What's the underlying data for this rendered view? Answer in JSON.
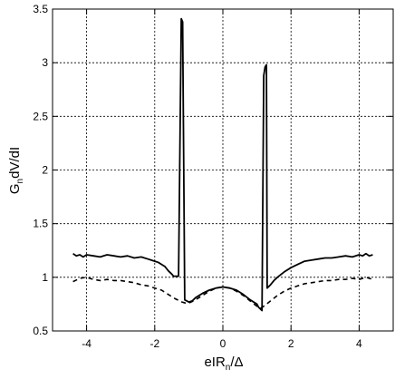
{
  "chart_data": {
    "type": "line",
    "xlabel": {
      "base": "eIR",
      "sub": "n",
      "tail": "/Δ"
    },
    "ylabel": {
      "base": "G",
      "sub": "n",
      "tail": "dV/dI"
    },
    "xlim": [
      -5,
      5
    ],
    "ylim": [
      0.5,
      3.5
    ],
    "xticks": [
      -4,
      -2,
      0,
      2,
      4
    ],
    "yticks": [
      0.5,
      1,
      1.5,
      2,
      2.5,
      3,
      3.5
    ],
    "xtick_labels": [
      "-4",
      "-2",
      "0",
      "2",
      "4"
    ],
    "ytick_labels": [
      "0.5",
      "1",
      "1.5",
      "2",
      "2.5",
      "3",
      "3.5"
    ],
    "grid": true,
    "series": [
      {
        "style": "solid",
        "x": [
          -4.4,
          -4.3,
          -4.2,
          -4.1,
          -4.0,
          -3.8,
          -3.6,
          -3.4,
          -3.2,
          -3.0,
          -2.8,
          -2.6,
          -2.4,
          -2.2,
          -2.0,
          -1.9,
          -1.8,
          -1.7,
          -1.6,
          -1.5,
          -1.45,
          -1.35,
          -1.3,
          -1.22,
          -1.18,
          -1.12,
          -1.0,
          -0.9,
          -0.8,
          -0.6,
          -0.4,
          -0.2,
          0.0,
          0.2,
          0.4,
          0.6,
          0.8,
          1.0,
          1.05,
          1.15,
          1.2,
          1.24,
          1.28,
          1.3,
          1.4,
          1.5,
          1.6,
          1.8,
          2.0,
          2.2,
          2.4,
          2.6,
          2.8,
          3.0,
          3.2,
          3.4,
          3.6,
          3.8,
          4.0,
          4.1,
          4.2,
          4.3,
          4.4
        ],
        "y": [
          1.22,
          1.2,
          1.21,
          1.19,
          1.21,
          1.2,
          1.19,
          1.21,
          1.2,
          1.19,
          1.2,
          1.18,
          1.19,
          1.17,
          1.15,
          1.14,
          1.12,
          1.1,
          1.06,
          1.03,
          1.01,
          1.01,
          1.01,
          3.41,
          3.38,
          0.79,
          0.77,
          0.78,
          0.81,
          0.85,
          0.88,
          0.9,
          0.91,
          0.9,
          0.88,
          0.84,
          0.79,
          0.75,
          0.72,
          0.69,
          2.88,
          2.96,
          2.98,
          0.9,
          0.93,
          0.97,
          1.0,
          1.05,
          1.09,
          1.12,
          1.15,
          1.16,
          1.17,
          1.18,
          1.18,
          1.19,
          1.2,
          1.19,
          1.21,
          1.2,
          1.22,
          1.2,
          1.21
        ]
      },
      {
        "style": "dashed",
        "x": [
          -4.4,
          -4.2,
          -4.0,
          -3.8,
          -3.6,
          -3.4,
          -3.2,
          -3.0,
          -2.8,
          -2.6,
          -2.4,
          -2.2,
          -2.0,
          -1.8,
          -1.6,
          -1.4,
          -1.2,
          -1.1,
          -1.0,
          -0.8,
          -0.6,
          -0.4,
          -0.2,
          0.0,
          0.2,
          0.4,
          0.6,
          0.8,
          1.0,
          1.1,
          1.2,
          1.4,
          1.6,
          1.8,
          2.0,
          2.2,
          2.4,
          2.6,
          2.8,
          3.0,
          3.2,
          3.4,
          3.6,
          3.8,
          4.0,
          4.2,
          4.4
        ],
        "y": [
          0.96,
          0.99,
          1.0,
          0.98,
          0.97,
          0.98,
          0.97,
          0.97,
          0.96,
          0.95,
          0.93,
          0.92,
          0.9,
          0.88,
          0.84,
          0.8,
          0.77,
          0.76,
          0.76,
          0.79,
          0.83,
          0.87,
          0.9,
          0.91,
          0.9,
          0.87,
          0.83,
          0.78,
          0.73,
          0.71,
          0.73,
          0.78,
          0.83,
          0.87,
          0.9,
          0.92,
          0.94,
          0.95,
          0.96,
          0.97,
          0.97,
          0.98,
          0.98,
          0.99,
          0.98,
          1.0,
          0.98
        ]
      }
    ]
  }
}
